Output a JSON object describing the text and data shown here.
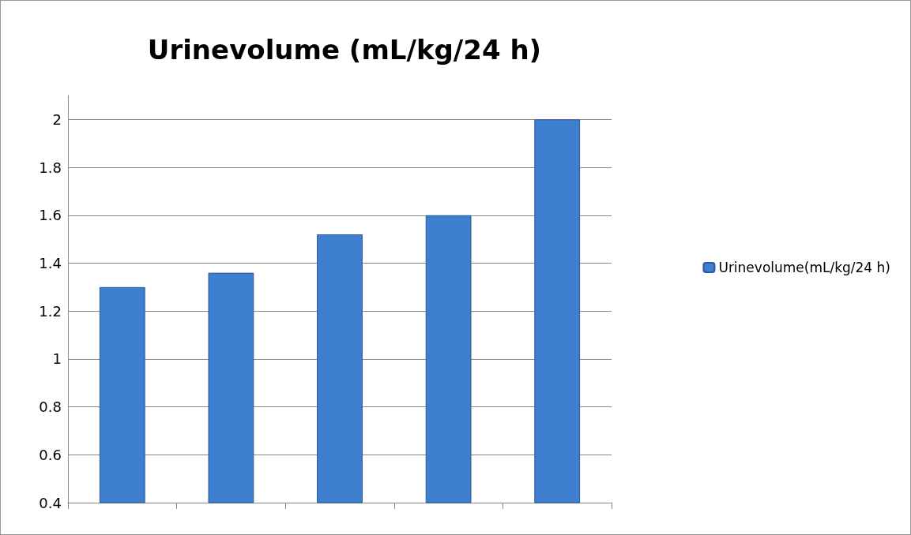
{
  "chart_data": {
    "type": "bar",
    "title": "Urinevolume (mL/kg/24 h)",
    "categories": [
      null,
      null,
      null,
      null,
      null
    ],
    "series": [
      {
        "name": "Urinevolume(mL/kg/24 h)",
        "color": "#3f7fd0",
        "values": [
          1.3,
          1.36,
          1.52,
          1.6,
          2.0
        ]
      }
    ],
    "ylim": [
      0.4,
      2.1
    ],
    "yticks": [
      0.4,
      0.6,
      0.8,
      1,
      1.2,
      1.4,
      1.6,
      1.8,
      2
    ],
    "grid": "y",
    "legend": "right"
  }
}
